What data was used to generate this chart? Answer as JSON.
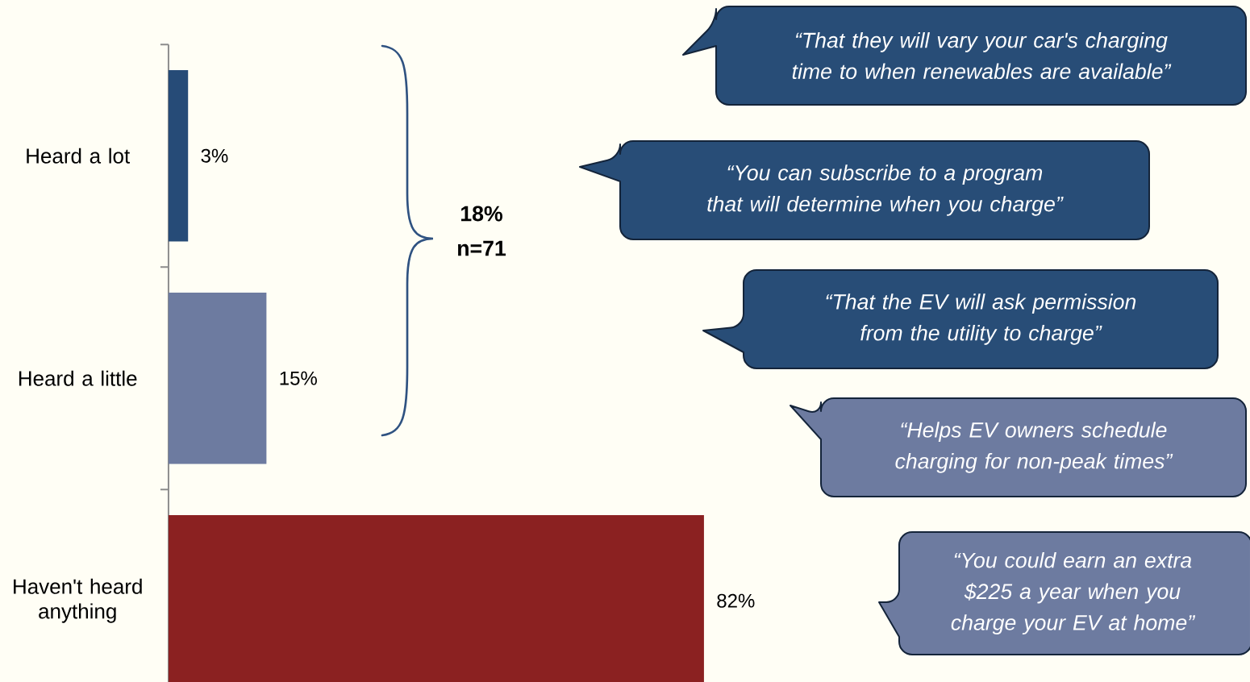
{
  "chart_data": {
    "type": "bar",
    "orientation": "horizontal",
    "categories": [
      "Heard a lot",
      "Heard a little",
      "Haven't heard anything"
    ],
    "values": [
      3,
      15,
      82
    ],
    "colors": [
      "#264b77",
      "#6d7ba0",
      "#8b2121"
    ],
    "value_labels": [
      "3%",
      "15%",
      "82%"
    ],
    "tick_labels": "y",
    "annotations": [
      "18%",
      "n=71",
      "“That they will vary your car's charging time to when renewables are available”",
      "“You can subscribe to a program that will determine when you charge”",
      "“That the EV will ask permission from the utility to charge”",
      "“Helps EV owners schedule charging for non-peak times”",
      "“You could earn an extra $225 a year when you charge your EV at home”"
    ]
  }
}
